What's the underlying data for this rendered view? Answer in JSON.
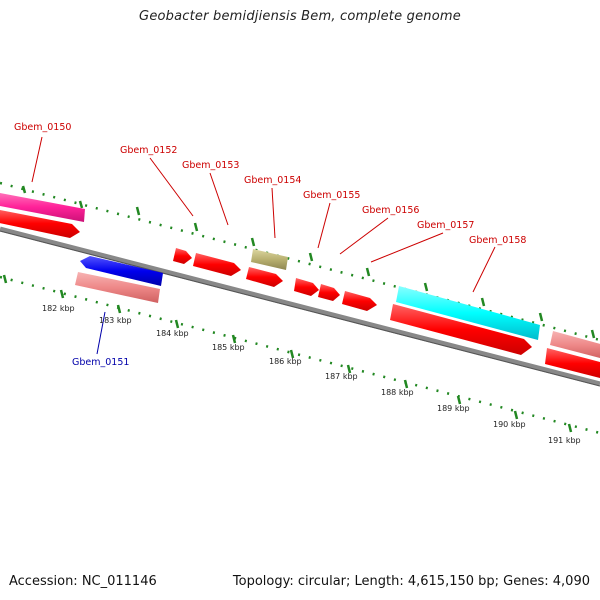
{
  "title": "Geobacter bemidjiensis Bem, complete genome",
  "footer": {
    "accession": "Accession: NC_011146",
    "summary": "Topology: circular; Length: 4,615,150 bp; Genes: 4,090"
  },
  "tick_labels": [
    "182 kbp",
    "183 kbp",
    "184 kbp",
    "185 kbp",
    "186 kbp",
    "187 kbp",
    "188 kbp",
    "189 kbp",
    "190 kbp",
    "191 kbp"
  ],
  "gene_labels": [
    "Gbem_0150",
    "Gbem_0151",
    "Gbem_0152",
    "Gbem_0153",
    "Gbem_0154",
    "Gbem_0155",
    "Gbem_0156",
    "Gbem_0157",
    "Gbem_0158"
  ],
  "colors": {
    "cds": "#ff0000",
    "rna_pink": "#ff3399",
    "label_red": "#cc0000",
    "label_blue": "#0000aa",
    "blue_gene": "#0000ee",
    "salmon": "#f08a8a",
    "olive": "#b8b070",
    "cyan": "#00ffff",
    "tick_green": "#228822",
    "backbone": "#888888"
  }
}
